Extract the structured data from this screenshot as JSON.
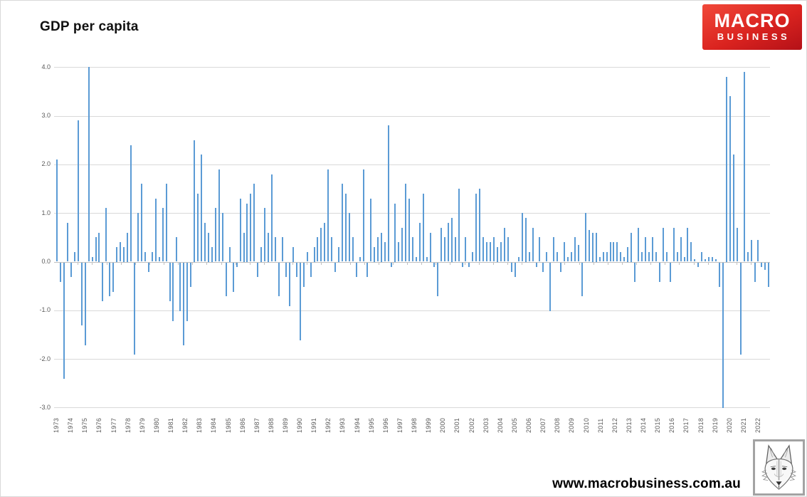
{
  "page": {
    "title": "GDP per capita"
  },
  "logo": {
    "line1": "MACRO",
    "line2": "BUSINESS",
    "bg_color": "#d5201f",
    "text_color": "#ffffff"
  },
  "footer": {
    "website": "www.macrobusiness.com.au"
  },
  "chart_data": {
    "type": "bar",
    "title": "GDP per capita",
    "frequency": "quarterly",
    "start_period": "1973-Q1",
    "ylim": [
      -3.0,
      4.0
    ],
    "grid": true,
    "legend": false,
    "ytick_labels": [
      "4.0",
      "3.0",
      "2.0",
      "1.0",
      "0.0",
      "-1.0",
      "-2.0",
      "-3.0"
    ],
    "x_year_labels": [
      "1973",
      "1974",
      "1975",
      "1976",
      "1977",
      "1978",
      "1979",
      "1980",
      "1981",
      "1982",
      "1983",
      "1984",
      "1985",
      "1986",
      "1987",
      "1988",
      "1989",
      "1990",
      "1991",
      "1992",
      "1993",
      "1994",
      "1995",
      "1996",
      "1997",
      "1998",
      "1999",
      "2000",
      "2001",
      "2002",
      "2003",
      "2004",
      "2005",
      "2006",
      "2007",
      "2008",
      "2009",
      "2010",
      "2011",
      "2012",
      "2013",
      "2014",
      "2015",
      "2016",
      "2017",
      "2018",
      "2019",
      "2020",
      "2021",
      "2022"
    ],
    "values": [
      2.1,
      -0.4,
      -2.4,
      0.8,
      -0.3,
      0.2,
      2.9,
      -1.3,
      -1.7,
      4.0,
      0.1,
      0.5,
      0.6,
      -0.8,
      1.1,
      -0.7,
      -0.6,
      0.3,
      0.4,
      0.3,
      0.6,
      2.4,
      -1.9,
      1.0,
      1.6,
      0.2,
      -0.2,
      0.2,
      1.3,
      0.1,
      1.1,
      1.6,
      -0.8,
      -1.2,
      0.5,
      -1.0,
      -1.7,
      -1.2,
      -0.5,
      2.5,
      1.4,
      2.2,
      0.8,
      0.6,
      0.3,
      1.1,
      1.9,
      1.0,
      -0.7,
      0.3,
      -0.6,
      -0.1,
      1.3,
      0.6,
      1.2,
      1.4,
      1.6,
      -0.3,
      0.3,
      1.1,
      0.6,
      1.8,
      0.5,
      -0.7,
      0.5,
      -0.3,
      -0.9,
      0.3,
      -0.3,
      -1.6,
      -0.5,
      0.2,
      -0.3,
      0.3,
      0.5,
      0.7,
      0.8,
      1.9,
      0.5,
      -0.2,
      0.3,
      1.6,
      1.4,
      1.0,
      0.5,
      -0.3,
      0.1,
      1.9,
      -0.3,
      1.3,
      0.3,
      0.5,
      0.6,
      0.4,
      2.8,
      -0.1,
      1.2,
      0.4,
      0.7,
      1.6,
      1.3,
      0.5,
      0.1,
      0.8,
      1.4,
      0.1,
      0.6,
      -0.1,
      -0.7,
      0.7,
      0.5,
      0.8,
      0.9,
      0.5,
      1.5,
      -0.1,
      0.5,
      -0.1,
      0.2,
      1.4,
      1.5,
      0.5,
      0.4,
      0.4,
      0.5,
      0.3,
      0.4,
      0.7,
      0.5,
      -0.2,
      -0.3,
      0.1,
      1.0,
      0.9,
      0.2,
      0.7,
      -0.1,
      0.5,
      -0.2,
      0.2,
      -1.0,
      0.5,
      0.2,
      -0.2,
      0.4,
      0.1,
      0.2,
      0.5,
      0.35,
      -0.7,
      1.0,
      0.65,
      0.6,
      0.6,
      0.1,
      0.2,
      0.2,
      0.4,
      0.4,
      0.4,
      0.2,
      0.1,
      0.3,
      0.6,
      -0.4,
      0.7,
      0.2,
      0.5,
      0.2,
      0.5,
      0.2,
      -0.4,
      0.7,
      0.2,
      -0.4,
      0.7,
      0.2,
      0.5,
      0.1,
      0.7,
      0.4,
      0.05,
      -0.1,
      0.2,
      0.05,
      0.1,
      0.1,
      0.05,
      -0.5,
      -3.0,
      3.8,
      3.4,
      2.2,
      0.7,
      -1.9,
      3.9,
      0.2,
      0.45,
      -0.4,
      0.45,
      -0.1,
      -0.15,
      -0.5
    ],
    "bar_color": "#5B9BD5",
    "grid_color": "#D9D9D9",
    "axis_color": "#BFBFBF",
    "tick_label_color": "#595959"
  }
}
